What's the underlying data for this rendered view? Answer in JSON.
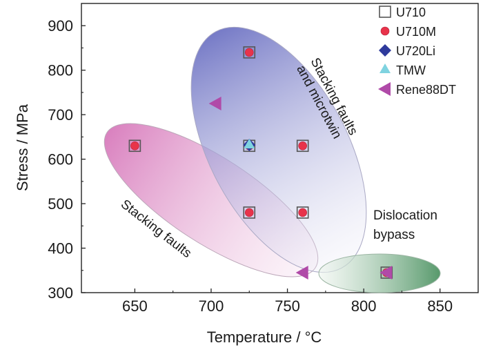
{
  "chart_data": {
    "type": "scatter",
    "xlabel": "Temperature / °C",
    "ylabel": "Stress / MPa",
    "xlim": [
      615,
      875
    ],
    "ylim": [
      300,
      950
    ],
    "xticks": [
      650,
      700,
      750,
      800,
      850
    ],
    "yticks": [
      300,
      400,
      500,
      600,
      700,
      800,
      900
    ],
    "legend_position": "top-right",
    "series": [
      {
        "name": "U710",
        "marker": "open-square",
        "color": "#555555",
        "points": [
          [
            650,
            630
          ],
          [
            725,
            840
          ],
          [
            725,
            630
          ],
          [
            725,
            480
          ],
          [
            760,
            630
          ],
          [
            760,
            480
          ],
          [
            815,
            345
          ]
        ]
      },
      {
        "name": "U710M",
        "marker": "circle",
        "color": "#e8334a",
        "points": [
          [
            650,
            630
          ],
          [
            725,
            840
          ],
          [
            725,
            630
          ],
          [
            725,
            480
          ],
          [
            760,
            630
          ],
          [
            760,
            480
          ],
          [
            815,
            345
          ]
        ]
      },
      {
        "name": "U720Li",
        "marker": "diamond",
        "color": "#2e3a9c",
        "points": [
          [
            725,
            632
          ]
        ]
      },
      {
        "name": "TMW",
        "marker": "triangle-up",
        "color": "#7fd3e0",
        "points": [
          [
            725,
            632
          ]
        ]
      },
      {
        "name": "Rene88DT",
        "marker": "triangle-left",
        "color": "#b04aa8",
        "points": [
          [
            703,
            725
          ],
          [
            760,
            345
          ],
          [
            815,
            345
          ]
        ]
      }
    ],
    "regions": [
      {
        "label_lines": [
          "Stacking faults"
        ],
        "color": "#d36bb4"
      },
      {
        "label_lines": [
          "Stacking faults",
          "and microtwin"
        ],
        "color": "#7a80c8"
      },
      {
        "label_lines": [
          "Dislocation",
          "bypass"
        ],
        "color": "#5a9a6a"
      }
    ]
  }
}
